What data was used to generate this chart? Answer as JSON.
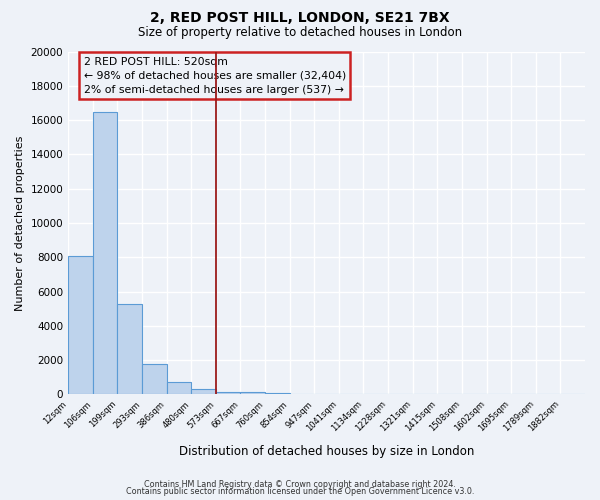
{
  "title": "2, RED POST HILL, LONDON, SE21 7BX",
  "subtitle": "Size of property relative to detached houses in London",
  "xlabel": "Distribution of detached houses by size in London",
  "ylabel": "Number of detached properties",
  "bar_values": [
    8100,
    16500,
    5300,
    1800,
    750,
    300,
    150,
    150,
    100,
    50,
    0,
    0,
    0,
    0,
    0,
    0,
    0,
    0,
    0,
    0,
    0
  ],
  "bar_labels": [
    "12sqm",
    "106sqm",
    "199sqm",
    "293sqm",
    "386sqm",
    "480sqm",
    "573sqm",
    "667sqm",
    "760sqm",
    "854sqm",
    "947sqm",
    "1041sqm",
    "1134sqm",
    "1228sqm",
    "1321sqm",
    "1415sqm",
    "1508sqm",
    "1602sqm",
    "1695sqm",
    "1789sqm",
    "1882sqm"
  ],
  "bar_color": "#bed3ec",
  "bar_edge_color": "#5b9bd5",
  "vline_color": "#9b1b1b",
  "annotation_title": "2 RED POST HILL: 520sqm",
  "annotation_line1": "← 98% of detached houses are smaller (32,404)",
  "annotation_line2": "2% of semi-detached houses are larger (537) →",
  "annotation_box_color": "#cc2222",
  "ylim": [
    0,
    20000
  ],
  "yticks": [
    0,
    2000,
    4000,
    6000,
    8000,
    10000,
    12000,
    14000,
    16000,
    18000,
    20000
  ],
  "footer1": "Contains HM Land Registry data © Crown copyright and database right 2024.",
  "footer2": "Contains public sector information licensed under the Open Government Licence v3.0.",
  "background_color": "#eef2f8",
  "grid_color": "#ffffff"
}
